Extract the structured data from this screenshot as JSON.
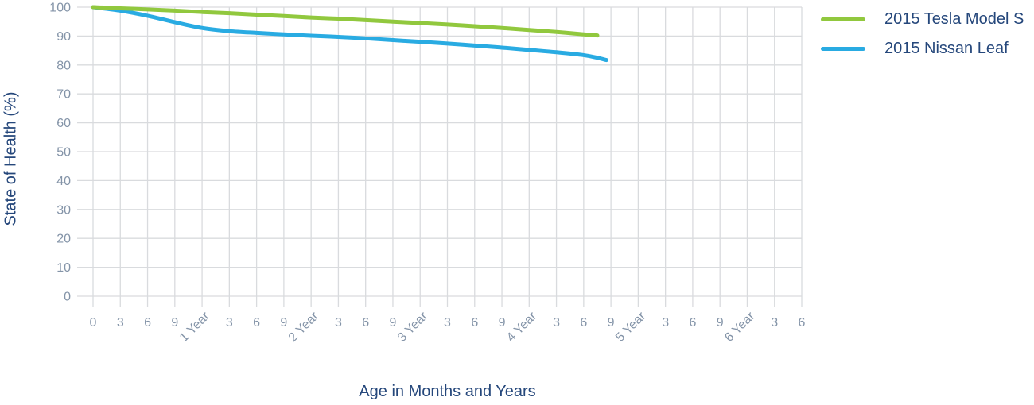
{
  "chart_data": {
    "type": "line",
    "title": "",
    "xlabel": "Age in Months and Years",
    "ylabel": "State of Health (%)",
    "ylim": [
      0,
      100
    ],
    "xlim_months": [
      0,
      78
    ],
    "grid": true,
    "legend_position": "top-right",
    "y_ticks": [
      0,
      10,
      20,
      30,
      40,
      50,
      60,
      70,
      80,
      90,
      100
    ],
    "x_tick_step_months": 3,
    "x_tick_labels": [
      "0",
      "3",
      "6",
      "9",
      "1 Year",
      "3",
      "6",
      "9",
      "2 Year",
      "3",
      "6",
      "9",
      "3 Year",
      "3",
      "6",
      "9",
      "4 Year",
      "3",
      "6",
      "9",
      "5 Year",
      "3",
      "6",
      "9",
      "6 Year",
      "3",
      "6"
    ],
    "series": [
      {
        "name": "2015 Nissan Leaf",
        "color": "#29ABE2",
        "x_months": [
          0,
          3,
          6,
          9,
          12,
          15,
          18,
          21,
          24,
          27,
          30,
          33,
          36,
          39,
          42,
          45,
          48,
          51,
          54,
          55.5,
          56.5
        ],
        "values": [
          100,
          98.8,
          97.0,
          94.8,
          92.8,
          91.7,
          91.1,
          90.6,
          90.1,
          89.7,
          89.2,
          88.6,
          88.0,
          87.4,
          86.7,
          86.0,
          85.2,
          84.4,
          83.4,
          82.5,
          81.7
        ]
      },
      {
        "name": "2015 Tesla Model S",
        "color": "#91C83E",
        "x_months": [
          0,
          3,
          6,
          9,
          12,
          15,
          18,
          21,
          24,
          27,
          30,
          33,
          36,
          39,
          42,
          45,
          48,
          51,
          54,
          55.5
        ],
        "values": [
          100,
          99.6,
          99.2,
          98.8,
          98.3,
          97.9,
          97.4,
          96.9,
          96.4,
          96.0,
          95.5,
          95.0,
          94.5,
          94.0,
          93.4,
          92.8,
          92.1,
          91.4,
          90.6,
          90.2
        ]
      }
    ]
  },
  "legend": {
    "items": [
      {
        "label": "2015 Tesla Model S",
        "color": "#91C83E"
      },
      {
        "label": "2015 Nissan Leaf",
        "color": "#29ABE2"
      }
    ]
  },
  "colors": {
    "grid": "#D9DBDE",
    "tick_label": "#8494A8",
    "axis_title": "#25477B",
    "background": "#FFFFFF"
  }
}
